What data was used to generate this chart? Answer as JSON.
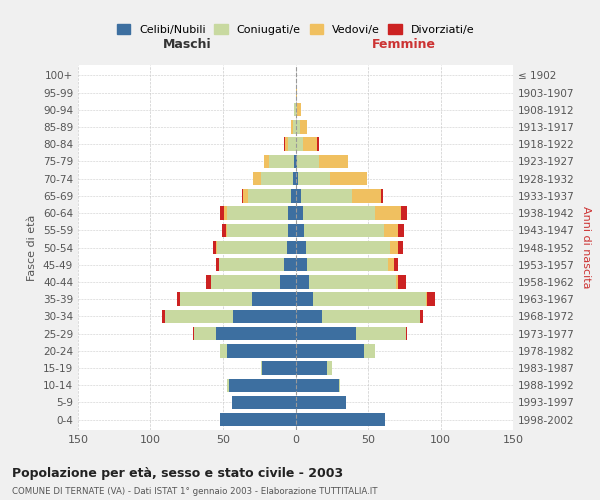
{
  "age_groups": [
    "0-4",
    "5-9",
    "10-14",
    "15-19",
    "20-24",
    "25-29",
    "30-34",
    "35-39",
    "40-44",
    "45-49",
    "50-54",
    "55-59",
    "60-64",
    "65-69",
    "70-74",
    "75-79",
    "80-84",
    "85-89",
    "90-94",
    "95-99",
    "100+"
  ],
  "birth_years": [
    "1998-2002",
    "1993-1997",
    "1988-1992",
    "1983-1987",
    "1978-1982",
    "1973-1977",
    "1968-1972",
    "1963-1967",
    "1958-1962",
    "1953-1957",
    "1948-1952",
    "1943-1947",
    "1938-1942",
    "1933-1937",
    "1928-1932",
    "1923-1927",
    "1918-1922",
    "1913-1917",
    "1908-1912",
    "1903-1907",
    "≤ 1902"
  ],
  "male": {
    "celibi": [
      52,
      44,
      46,
      23,
      47,
      55,
      43,
      30,
      11,
      8,
      6,
      5,
      5,
      3,
      2,
      1,
      0,
      0,
      0,
      0,
      0
    ],
    "coniugati": [
      0,
      0,
      1,
      1,
      5,
      15,
      47,
      50,
      47,
      45,
      48,
      42,
      42,
      30,
      22,
      17,
      5,
      2,
      1,
      0,
      0
    ],
    "vedovi": [
      0,
      0,
      0,
      0,
      0,
      0,
      0,
      0,
      0,
      0,
      1,
      1,
      2,
      3,
      5,
      4,
      2,
      1,
      0,
      0,
      0
    ],
    "divorziati": [
      0,
      0,
      0,
      0,
      0,
      1,
      2,
      2,
      4,
      2,
      2,
      3,
      3,
      1,
      0,
      0,
      1,
      0,
      0,
      0,
      0
    ]
  },
  "female": {
    "nubili": [
      62,
      35,
      30,
      22,
      47,
      42,
      18,
      12,
      9,
      8,
      7,
      6,
      5,
      4,
      2,
      1,
      0,
      0,
      0,
      0,
      0
    ],
    "coniugate": [
      0,
      0,
      1,
      3,
      8,
      34,
      68,
      78,
      60,
      56,
      58,
      55,
      50,
      35,
      22,
      15,
      5,
      3,
      1,
      0,
      0
    ],
    "vedove": [
      0,
      0,
      0,
      0,
      0,
      0,
      0,
      1,
      2,
      4,
      6,
      10,
      18,
      20,
      25,
      20,
      10,
      5,
      3,
      1,
      0
    ],
    "divorziate": [
      0,
      0,
      0,
      0,
      0,
      1,
      2,
      5,
      5,
      3,
      3,
      4,
      4,
      1,
      0,
      0,
      1,
      0,
      0,
      0,
      0
    ]
  },
  "colors": {
    "celibi_nubili": "#3d6fa0",
    "coniugati": "#c8d9a0",
    "vedovi": "#f0c060",
    "divorziati": "#cc2222"
  },
  "title": "Popolazione per età, sesso e stato civile - 2003",
  "subtitle": "COMUNE DI TERNATE (VA) - Dati ISTAT 1° gennaio 2003 - Elaborazione TUTTITALIA.IT",
  "xlabel_left": "Maschi",
  "xlabel_right": "Femmine",
  "ylabel_left": "Fasce di età",
  "ylabel_right": "Anni di nascita",
  "xlim": 150,
  "legend_labels": [
    "Celibi/Nubili",
    "Coniugati/e",
    "Vedovi/e",
    "Divorziati/e"
  ],
  "background_color": "#f0f0f0",
  "plot_bg": "#ffffff"
}
